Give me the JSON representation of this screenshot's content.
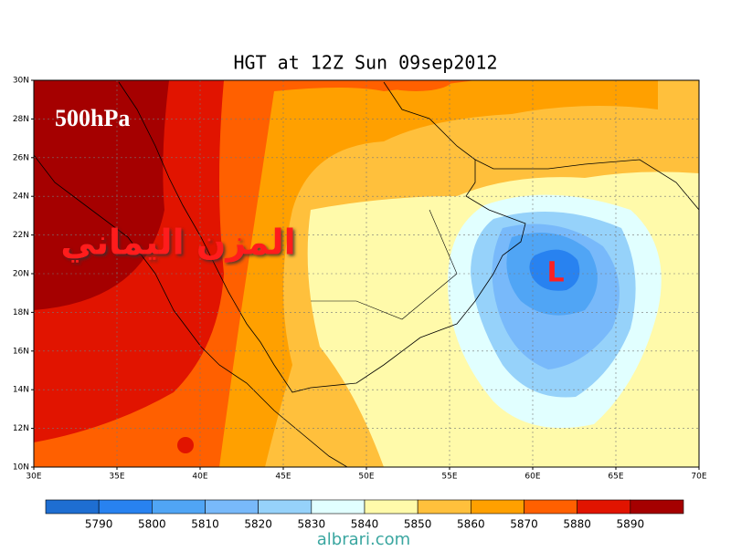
{
  "title": "HGT at 12Z Sun 09sep2012",
  "level_label": "500hPa",
  "annotation": "المزن اليماني",
  "low_marker": "L",
  "lat_labels": [
    "30N",
    "28N",
    "26N",
    "24N",
    "22N",
    "20N",
    "18N",
    "16N",
    "14N",
    "12N",
    "10N"
  ],
  "lon_labels": [
    "30E",
    "35E",
    "40E",
    "45E",
    "50E",
    "55E",
    "60E",
    "65E",
    "70E"
  ],
  "colorbar": {
    "colors": [
      "#1e6ed2",
      "#2882f0",
      "#50a5f5",
      "#78b9fa",
      "#96d2fa",
      "#e1ffff",
      "#fffaaa",
      "#ffc03c",
      "#ffa000",
      "#ff6000",
      "#e11400",
      "#a50000"
    ],
    "labels": [
      "5790",
      "5800",
      "5810",
      "5820",
      "5830",
      "5840",
      "5850",
      "5860",
      "5870",
      "5880",
      "5890"
    ]
  },
  "watermark": "albrari.com"
}
